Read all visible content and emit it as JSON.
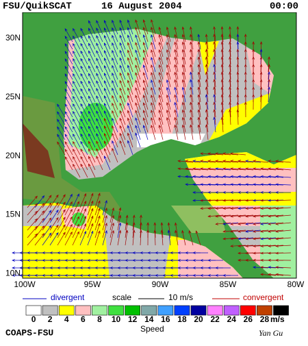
{
  "header": {
    "title": "FSU/QuikSCAT",
    "date": "16 August 2004",
    "time": "00:00"
  },
  "lat_labels": [
    "30N",
    "25N",
    "20N",
    "15N",
    "10N"
  ],
  "lon_labels": [
    "100W",
    "95W",
    "90W",
    "85W",
    "80W"
  ],
  "legend": {
    "divergent": "divergent",
    "scale": "scale",
    "scale_value": "10 m/s",
    "convergent": "convergent"
  },
  "colorbar": {
    "levels": [
      0,
      2,
      4,
      6,
      8,
      10,
      12,
      14,
      16,
      18,
      20,
      22,
      24,
      26,
      28
    ],
    "colors": [
      "#ffffff",
      "#c0c0c0",
      "#ffff00",
      "#ffc0c0",
      "#a0f0a0",
      "#40e040",
      "#00c000",
      "#80a8a8",
      "#40a0ff",
      "#0040ff",
      "#0000a0",
      "#ff80ff",
      "#c060ff",
      "#ff0000",
      "#c04000",
      "#000000"
    ],
    "unit": "m/s",
    "title": "Speed"
  },
  "footer": {
    "org": "COAPS-FSU",
    "author": "Yan Gu"
  }
}
